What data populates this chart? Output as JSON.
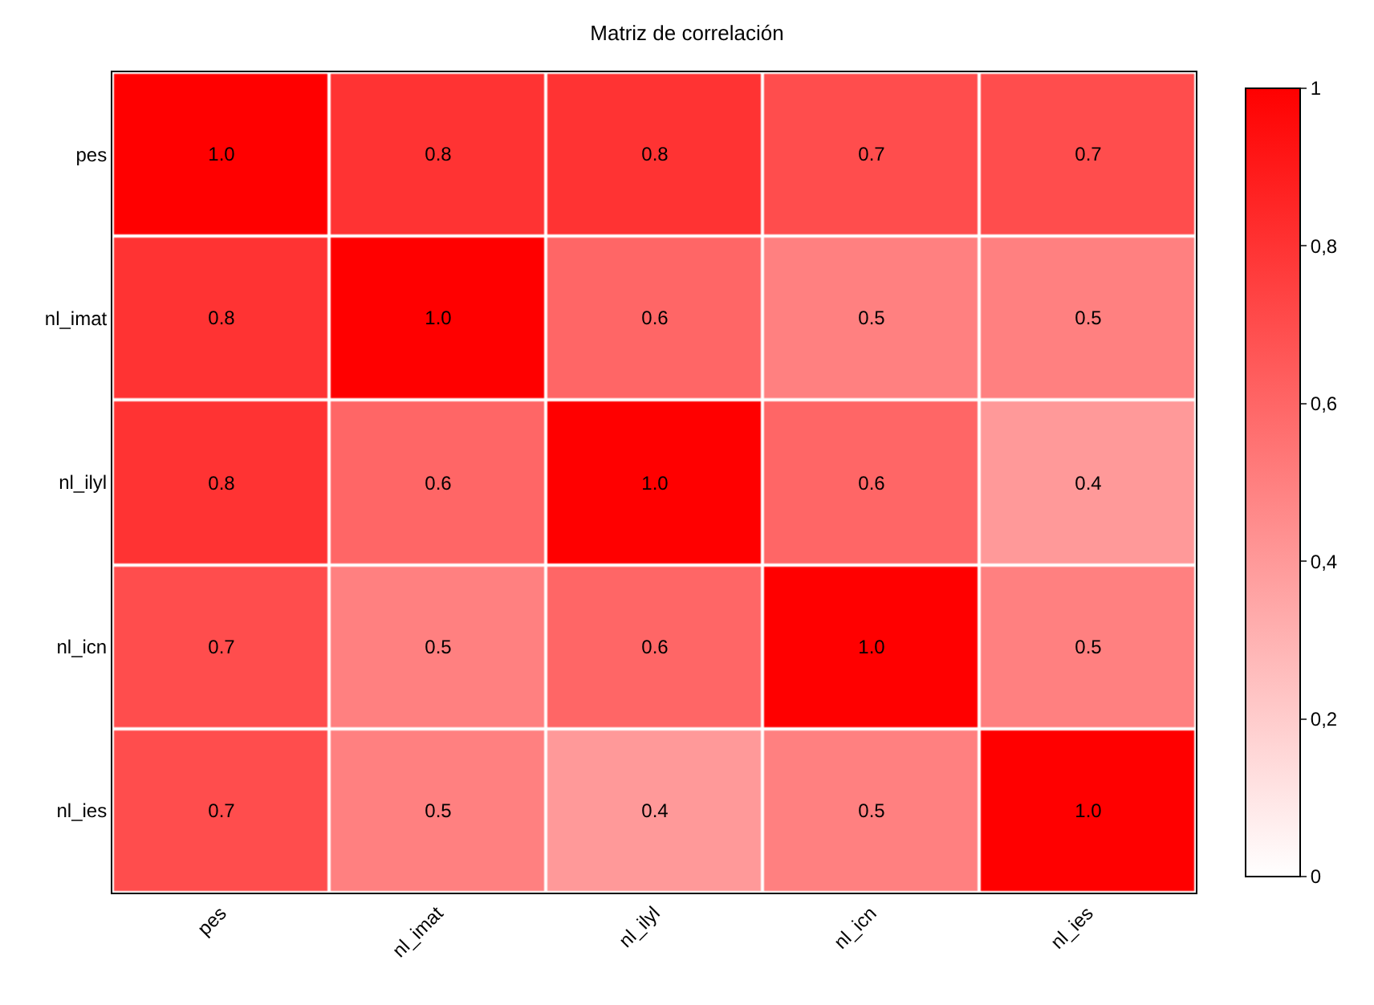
{
  "chart_data": {
    "type": "heatmap",
    "title": "Matriz de correlación",
    "categories": [
      "pes",
      "nl_imat",
      "nl_ilyl",
      "nl_icn",
      "nl_ies"
    ],
    "y_categories": [
      "pes",
      "nl_imat",
      "nl_ilyl",
      "nl_icn",
      "nl_ies"
    ],
    "cells": [
      [
        1.0,
        0.8,
        0.8,
        0.7,
        0.7
      ],
      [
        0.8,
        1.0,
        0.6,
        0.5,
        0.5
      ],
      [
        0.8,
        0.6,
        1.0,
        0.6,
        0.4
      ],
      [
        0.7,
        0.5,
        0.6,
        1.0,
        0.5
      ],
      [
        0.7,
        0.5,
        0.4,
        0.5,
        1.0
      ]
    ],
    "cell_labels": [
      [
        "1.0",
        "0.8",
        "0.8",
        "0.7",
        "0.7"
      ],
      [
        "0.8",
        "1.0",
        "0.6",
        "0.5",
        "0.5"
      ],
      [
        "0.8",
        "0.6",
        "1.0",
        "0.6",
        "0.4"
      ],
      [
        "0.7",
        "0.5",
        "0.6",
        "1.0",
        "0.5"
      ],
      [
        "0.7",
        "0.5",
        "0.4",
        "0.5",
        "1.0"
      ]
    ],
    "clim": [
      0,
      1
    ],
    "cticks": [
      0,
      {
        "value": 0.2,
        "label": "0,2"
      },
      {
        "value": 0.4,
        "label": "0,4"
      },
      {
        "value": 0.6,
        "label": "0,6"
      },
      {
        "value": 0.8,
        "label": "0,8"
      },
      1
    ]
  }
}
